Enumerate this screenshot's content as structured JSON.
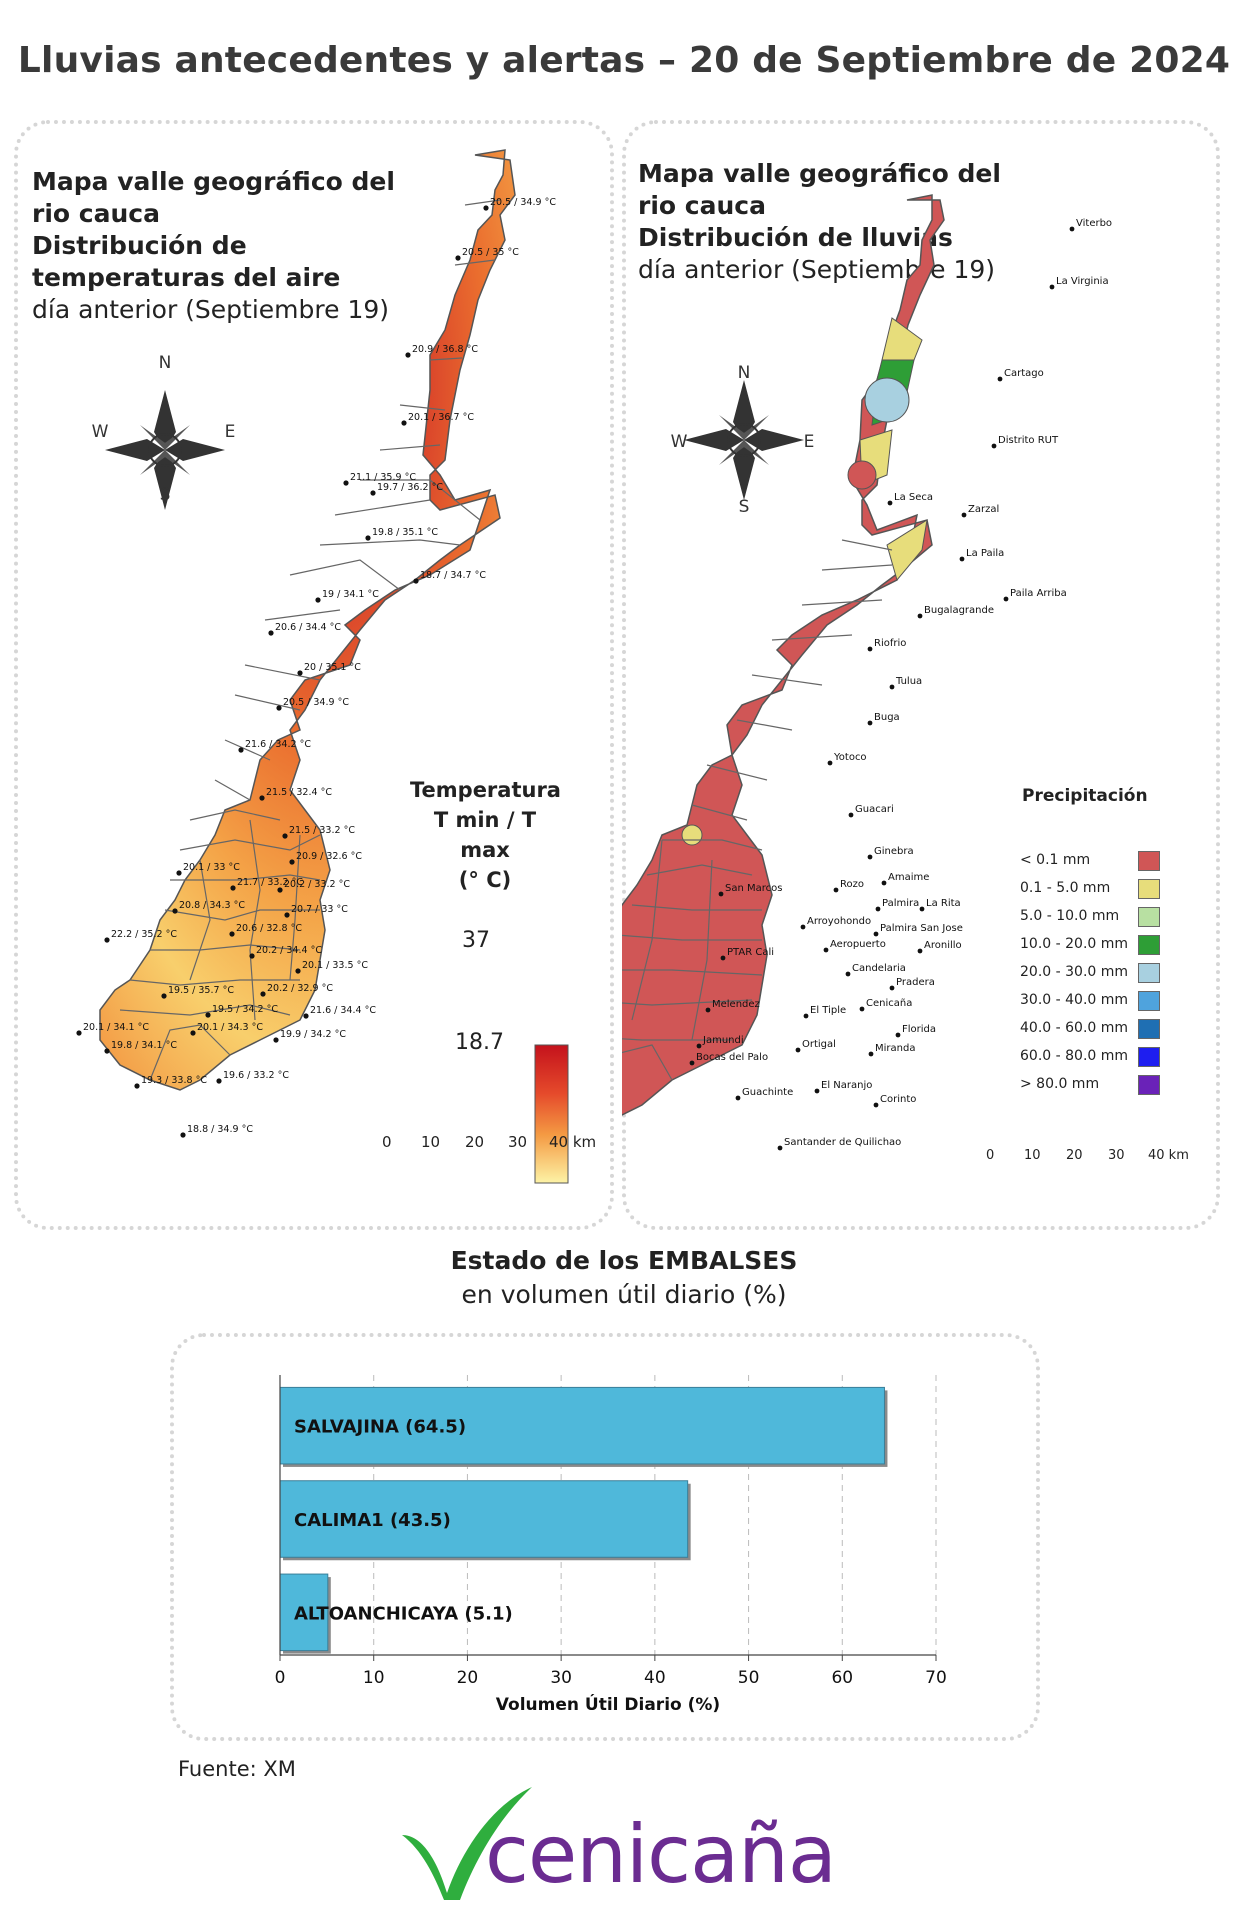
{
  "title": "Lluvias antecedentes y alertas – 20 de Septiembre de 2024",
  "left_panel": {
    "line1": "Mapa valle geográfico del",
    "line2": "rio cauca",
    "line3": "Distribución de",
    "line4": "temperaturas del aire",
    "line5": "día anterior (Septiembre 19)",
    "compass": {
      "n": "N",
      "s": "S",
      "e": "E",
      "w": "W"
    },
    "legend_title_1": "Temperatura",
    "legend_title_2": "T min / T max",
    "legend_title_3": "(° C)",
    "legend_max": "37",
    "legend_min": "18.7",
    "scale": [
      "0",
      "10",
      "20",
      "30",
      "40 km"
    ],
    "stations": [
      "20.5 / 34.9 °C",
      "20.5 / 35 °C",
      "20.9 / 36.8 °C",
      "20.1 / 36.7 °C",
      "21.1 / 35.9 °C",
      "19.7 / 36.2 °C",
      "19.8 / 35.1 °C",
      "18.7 / 34.7 °C",
      "19 / 34.1 °C",
      "20.6 / 34.4 °C",
      "20 / 35.1 °C",
      "20.5 / 34.9 °C",
      "21.6 / 34.2 °C",
      "21.5 / 32.4 °C",
      "21.5 / 33.2 °C",
      "20.1 / 33 °C",
      "20.9 / 32.6 °C",
      "21.7 / 33.2 °C",
      "20.2 / 33.2 °C",
      "20.8 / 34.3 °C",
      "20.7 / 33 °C",
      "22.2 / 35.2 °C",
      "20.6 / 32.8 °C",
      "20.2 / 34.4 °C",
      "20.1 / 33.5 °C",
      "19.5 / 35.7 °C",
      "20.2 / 32.9 °C",
      "19.5 / 34.2 °C",
      "21.6 / 34.4 °C",
      "20.1 / 34.1 °C",
      "20.1 / 34.3 °C",
      "19.9 / 34.2 °C",
      "19.8 / 34.1 °C",
      "19.3 / 33.8 °C",
      "19.6 / 33.2 °C",
      "18.8 / 34.9 °C"
    ]
  },
  "right_panel": {
    "line1": "Mapa valle geográfico del",
    "line2": "rio cauca",
    "line3": "Distribución de lluvias",
    "line4": "día anterior (Septiembre 19)",
    "compass": {
      "n": "N",
      "s": "S",
      "e": "E",
      "w": "W"
    },
    "legend_title": "Precipitación",
    "legend": [
      {
        "label": "< 0.1 mm",
        "color": "#d05656"
      },
      {
        "label": "0.1 - 5.0 mm",
        "color": "#e7dd7b"
      },
      {
        "label": "5.0 - 10.0 mm",
        "color": "#b8e0a2"
      },
      {
        "label": "10.0 - 20.0 mm",
        "color": "#2e9e36"
      },
      {
        "label": "20.0 - 30.0 mm",
        "color": "#a8d0e0"
      },
      {
        "label": "30.0 - 40.0 mm",
        "color": "#4fa3dd"
      },
      {
        "label": "40.0 - 60.0 mm",
        "color": "#1f6fb3"
      },
      {
        "label": "60.0 - 80.0 mm",
        "color": "#1e1ef0"
      },
      {
        "label": "> 80.0 mm",
        "color": "#6a22b8"
      }
    ],
    "scale": [
      "0",
      "10",
      "20",
      "30",
      "40 km"
    ],
    "towns": [
      "Viterbo",
      "La Virginia",
      "Cartago",
      "Distrito RUT",
      "La Seca",
      "Zarzal",
      "La Paila",
      "Paila Arriba",
      "Bugalagrande",
      "Riofrio",
      "Tulua",
      "Buga",
      "Yotoco",
      "Guacari",
      "Ginebra",
      "San Marcos",
      "Rozo",
      "Amaime",
      "Palmira",
      "La Rita",
      "Arroyohondo",
      "Palmira San Jose",
      "Aeropuerto",
      "Aronillo",
      "PTAR Cali",
      "Candelaria",
      "Pradera",
      "Melendez",
      "El Tiple",
      "Cenicaña",
      "Jamundi",
      "Bocas del Palo",
      "Ortigal",
      "Florida",
      "Miranda",
      "El Naranjo",
      "Guachinte",
      "Corinto",
      "Santander de Quilichao"
    ]
  },
  "reservoirs": {
    "title_bold": "Estado de los EMBALSES",
    "title_normal": "en volumen útil diario (%)",
    "chart_data": {
      "type": "bar",
      "orientation": "horizontal",
      "categories": [
        "SALVAJINA",
        "CALIMA1",
        "ALTOANCHICAYA"
      ],
      "bar_labels": [
        "SALVAJINA (64.5)",
        "CALIMA1 (43.5)",
        "ALTOANCHICAYA (5.1)"
      ],
      "values": [
        64.5,
        43.5,
        5.1
      ],
      "xlabel": "Volumen Útil Diario (%)",
      "xlim": [
        0,
        70
      ],
      "xticks": [
        "0",
        "10",
        "20",
        "30",
        "40",
        "50",
        "60",
        "70"
      ],
      "bar_color": "#4fb8da",
      "grid": true
    }
  },
  "source": "Fuente: XM",
  "brand": "cenicaña",
  "colors": {
    "brand_purple": "#6b2c91",
    "brand_green": "#2fae3e"
  }
}
